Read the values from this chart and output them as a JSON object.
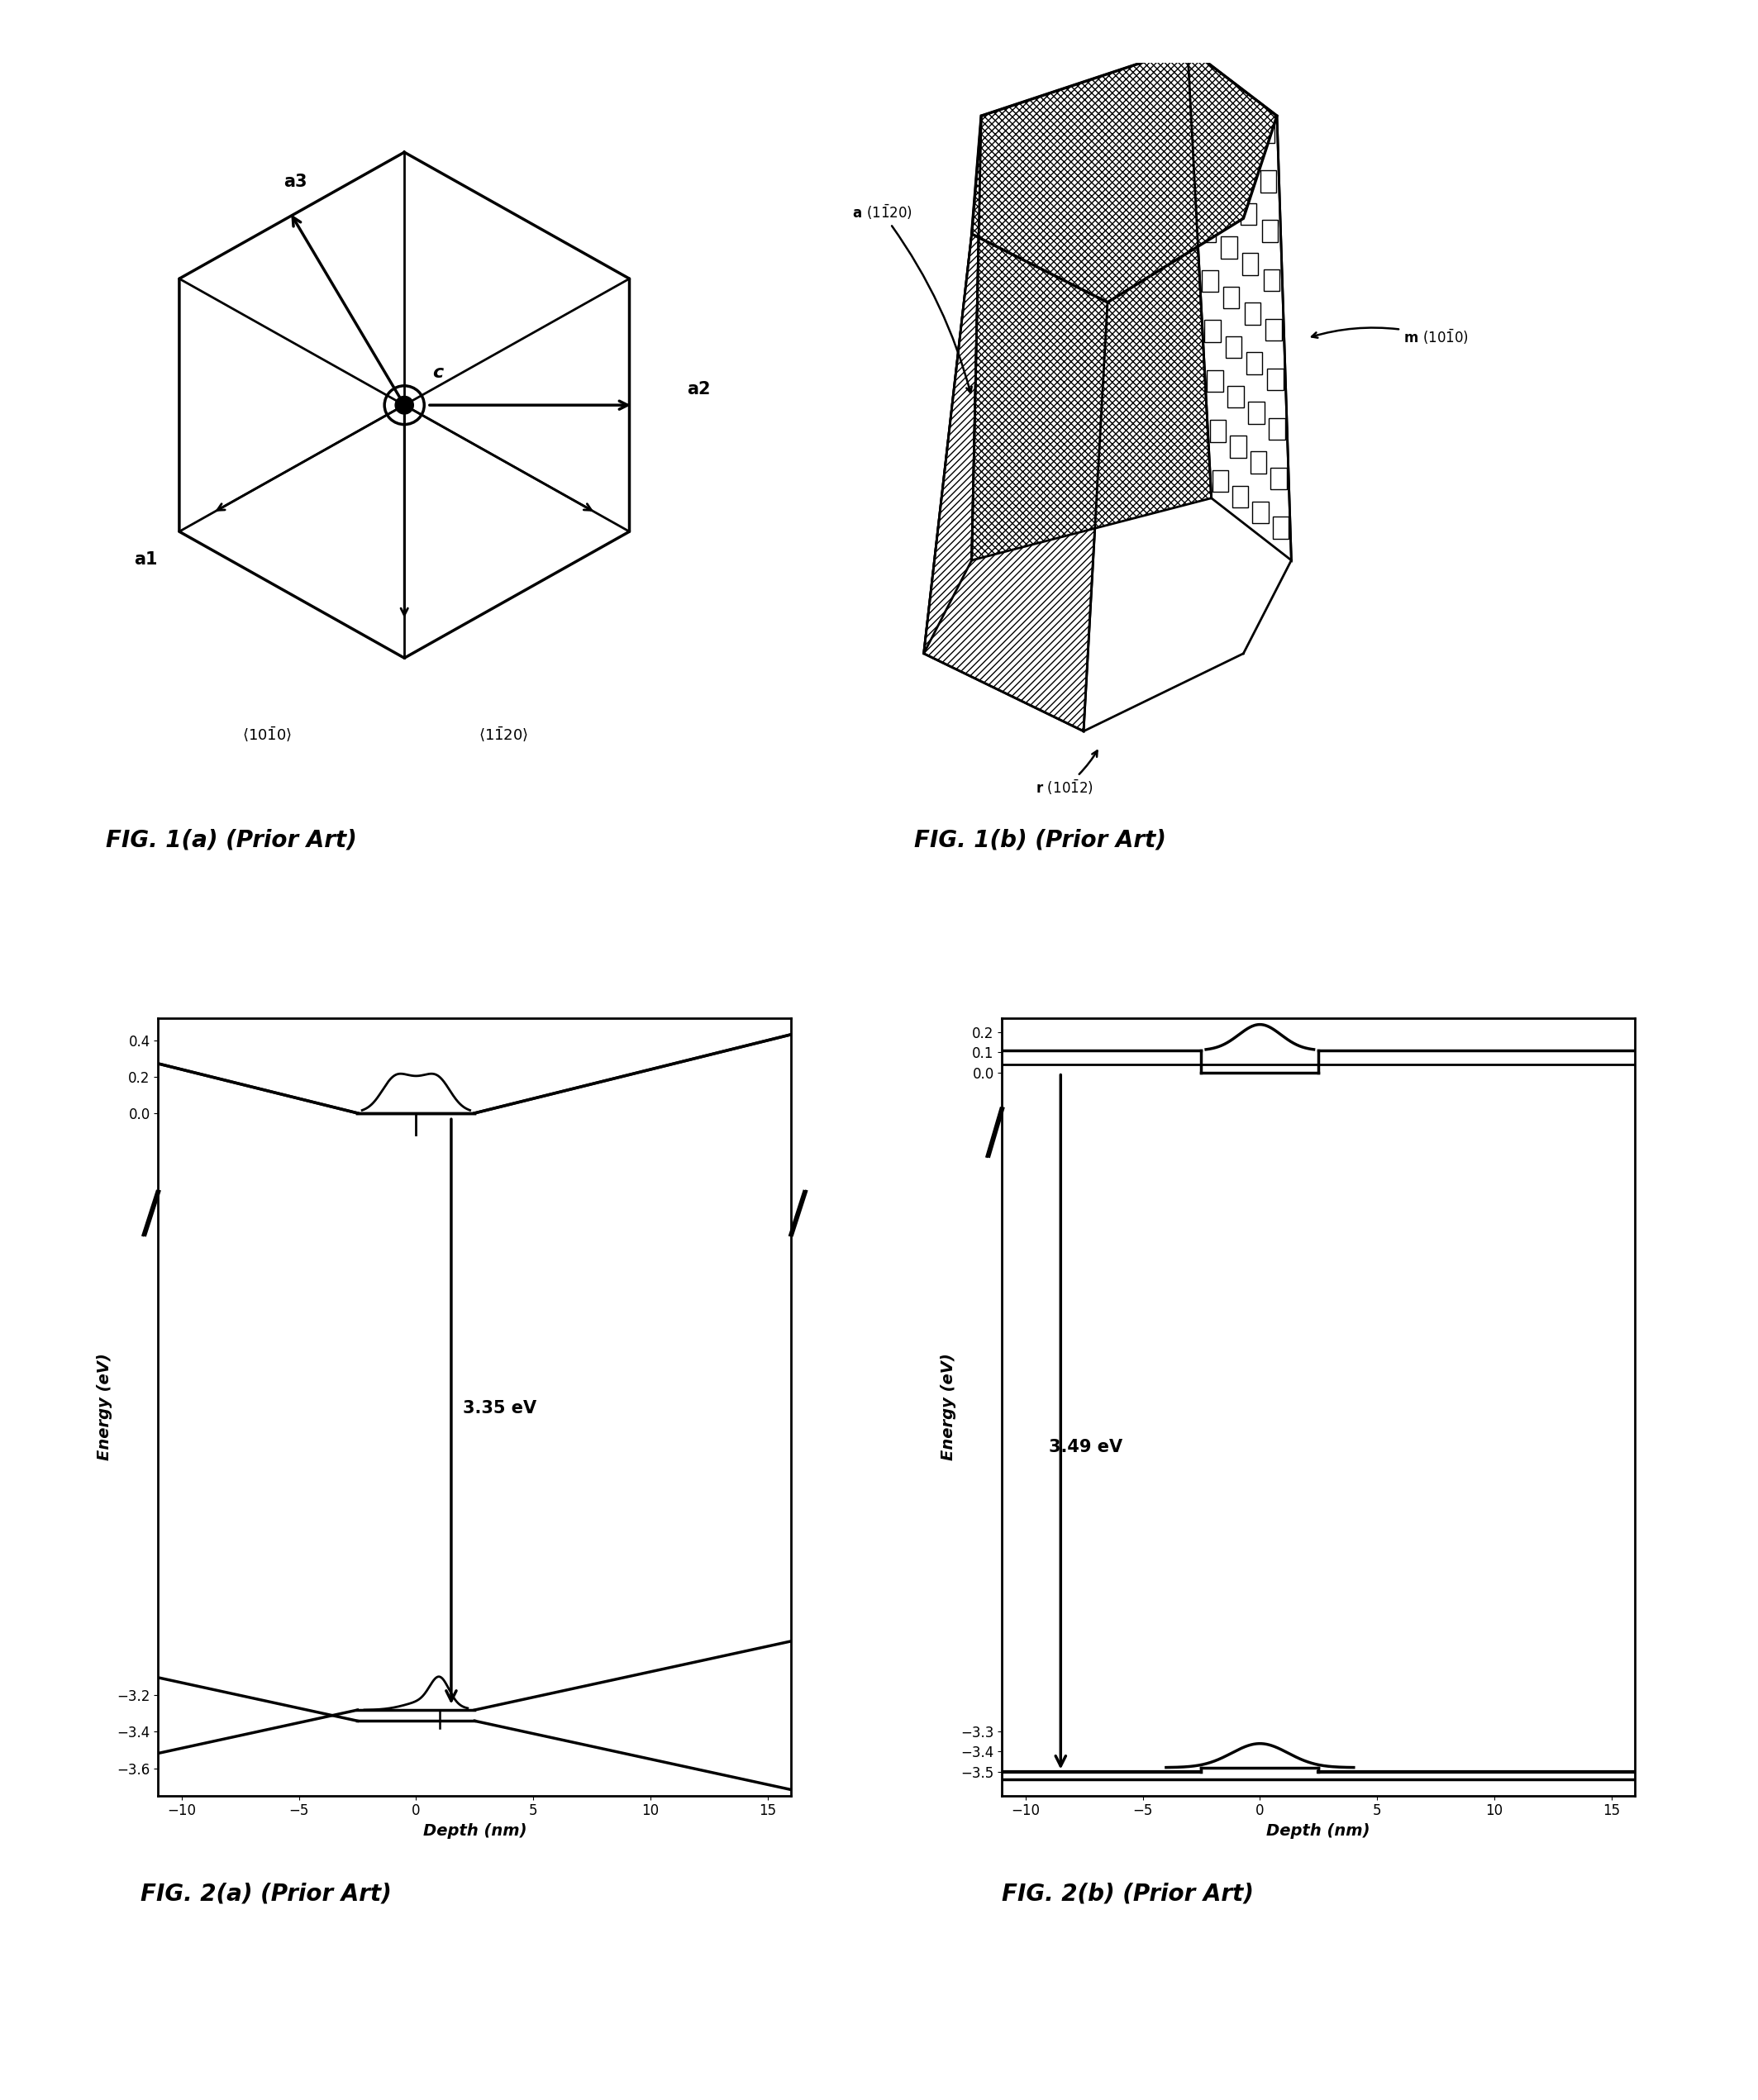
{
  "fig_width": 21.27,
  "fig_height": 25.41,
  "background": "#ffffff",
  "fig1a_caption": "FIG. 1(a) (Prior Art)",
  "fig1b_caption": "FIG. 1(b) (Prior Art)",
  "fig2a_caption": "FIG. 2(a) (Prior Art)",
  "fig2b_caption": "FIG. 2(b) (Prior Art)",
  "fig2a_energy_label": "3.35 eV",
  "fig2b_energy_label": "3.49 eV",
  "fig2a_ylabel": "Energy (eV)",
  "fig2a_xlabel": "Depth (nm)",
  "fig2b_ylabel": "Energy (eV)",
  "fig2b_xlabel": "Depth (nm)",
  "fig2a_yticks": [
    -3.6,
    -3.4,
    -3.2,
    0.0,
    0.2,
    0.4
  ],
  "fig2b_yticks": [
    -3.5,
    -3.4,
    -3.3,
    0.0,
    0.1,
    0.2
  ],
  "fig2a_ylim": [
    -3.75,
    0.52
  ],
  "fig2b_ylim": [
    -3.62,
    0.27
  ],
  "fig2a_xlim": [
    -11,
    16
  ],
  "fig2b_xlim": [
    -11,
    16
  ],
  "fig2_xticks": [
    -10,
    -5,
    0,
    5,
    10,
    15
  ]
}
